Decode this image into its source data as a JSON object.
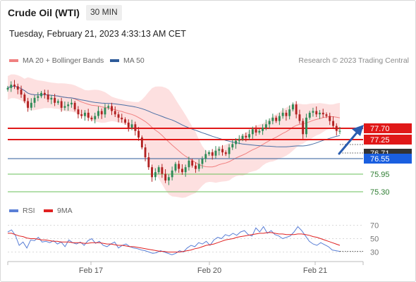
{
  "header": {
    "instrument": "Crude Oil (WTI)",
    "interval": "30 MIN",
    "timestamp": "Tuesday, February 21, 2023 4:33:13 AM CET"
  },
  "legend": {
    "items": [
      {
        "label": "MA 20 + Bollinger Bands",
        "color": "#f08080"
      },
      {
        "label": "MA 50",
        "color": "#2e5b99"
      }
    ],
    "credit": "Research © 2023 Trading Central"
  },
  "rsi_legend": {
    "items": [
      {
        "label": "RSI",
        "color": "#5a7fd6"
      },
      {
        "label": "9MA",
        "color": "#e02020"
      }
    ]
  },
  "colors": {
    "up_candle": "#2e8b57",
    "down_candle": "#b22222",
    "bollinger_fill": "#fde0e0",
    "ma20": "#f08080",
    "ma50": "#4a6fa5",
    "resistance": "#e01818",
    "pivot_label_bg": "#1a5fe0",
    "support": "#6abf5a",
    "support_text": "#2e7d32",
    "price_label_bg": "#333333",
    "arrow": "#2a5db0"
  },
  "chart_data": [
    {
      "type": "candlestick",
      "title": "Crude Oil (WTI) 30 MIN",
      "x_ticks": [
        "Feb 17",
        "Feb 20",
        "Feb 21"
      ],
      "ylim": [
        74.9,
        78.4
      ],
      "close_series": [
        78.0,
        78.1,
        78.05,
        77.95,
        77.8,
        77.6,
        77.4,
        77.55,
        77.7,
        77.75,
        77.85,
        77.8,
        77.65,
        77.7,
        77.55,
        77.6,
        77.4,
        77.45,
        77.5,
        77.55,
        77.35,
        77.2,
        77.15,
        77.25,
        77.1,
        77.05,
        77.15,
        77.3,
        77.2,
        77.4,
        77.45,
        77.3,
        77.2,
        77.1,
        77.05,
        76.95,
        76.8,
        76.9,
        76.7,
        76.5,
        76.2,
        75.9,
        75.6,
        75.3,
        75.45,
        75.6,
        75.4,
        75.2,
        75.3,
        75.5,
        75.7,
        75.55,
        75.45,
        75.6,
        75.8,
        75.65,
        75.55,
        75.7,
        75.85,
        76.0,
        76.05,
        75.95,
        76.1,
        76.15,
        76.05,
        76.0,
        76.2,
        76.3,
        76.4,
        76.45,
        76.55,
        76.5,
        76.6,
        76.75,
        76.65,
        76.7,
        76.8,
        76.9,
        77.0,
        77.1,
        77.0,
        77.15,
        77.25,
        77.15,
        77.35,
        77.5,
        77.2,
        77.0,
        76.6,
        77.1,
        77.25,
        77.3,
        77.2,
        77.25,
        77.2,
        77.15,
        77.0,
        76.85,
        76.7,
        76.7
      ],
      "overlays": [
        {
          "name": "MA 20 + Bollinger Bands"
        },
        {
          "name": "MA 50"
        }
      ],
      "levels": [
        {
          "label": "77.70",
          "type": "resistance"
        },
        {
          "label": "77.25",
          "type": "resistance"
        },
        {
          "label": "76.71",
          "type": "last price"
        },
        {
          "label": "76.55",
          "type": "pivot"
        },
        {
          "label": "75.95",
          "type": "support"
        },
        {
          "label": "75.30",
          "type": "support"
        }
      ],
      "forecast": "up"
    },
    {
      "type": "line",
      "title": "",
      "series": [
        {
          "name": "RSI",
          "values": [
            60,
            63,
            55,
            40,
            45,
            36,
            48,
            47,
            52,
            45,
            46,
            44,
            47,
            42,
            45,
            38,
            48,
            44,
            42,
            45,
            40,
            47,
            50,
            43,
            46,
            40,
            38,
            42,
            45,
            36,
            40,
            42,
            38,
            36,
            35,
            33,
            32,
            30,
            28,
            29,
            32,
            30,
            28,
            26,
            28,
            32,
            30,
            36,
            40,
            38,
            44,
            42,
            46,
            40,
            48,
            52,
            50,
            56,
            54,
            58,
            55,
            60,
            62,
            56,
            54,
            66,
            60,
            68,
            58,
            62,
            56,
            54,
            50,
            52,
            54,
            60,
            68,
            62,
            54,
            46,
            42,
            40,
            44,
            41,
            38,
            33,
            32,
            31
          ]
        },
        {
          "name": "9MA",
          "values": [
            58,
            58,
            56,
            54,
            53,
            51,
            50,
            50,
            49,
            48,
            48,
            47,
            46,
            46,
            45,
            45,
            45,
            44,
            44,
            44,
            43,
            43,
            44,
            44,
            44,
            43,
            42,
            42,
            41,
            40,
            40,
            39,
            38,
            38,
            37,
            36,
            35,
            34,
            33,
            32,
            31,
            31,
            30,
            30,
            30,
            30,
            31,
            32,
            33,
            35,
            36,
            38,
            40,
            41,
            42,
            44,
            46,
            48,
            49,
            50,
            52,
            53,
            54,
            55,
            56,
            57,
            58,
            58,
            59,
            59,
            58,
            57,
            57,
            56,
            56,
            56,
            57,
            57,
            56,
            55,
            53,
            52,
            50,
            48,
            46,
            44,
            42,
            40
          ]
        }
      ],
      "y_ticks": [
        "70",
        "50",
        "30"
      ],
      "ylim": [
        20,
        80
      ]
    }
  ]
}
